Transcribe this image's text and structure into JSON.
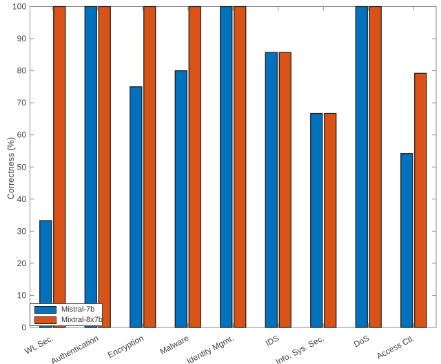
{
  "chart_data": {
    "type": "bar",
    "title": "",
    "xlabel": "",
    "ylabel": "Correctness (%)",
    "categories": [
      "WL Sec.",
      "Authentication",
      "Encryption",
      "Malware",
      "Identity Mgmt.",
      "IDS",
      "Info. Sys. Sec.",
      "DoS",
      "Access Ctl."
    ],
    "series": [
      {
        "name": "Mistral-7b",
        "color": "#0072BD",
        "values": [
          33.3,
          100,
          75,
          80,
          100,
          85.7,
          66.7,
          100,
          54.2
        ]
      },
      {
        "name": "Mixtral-8x7b",
        "color": "#D95319",
        "values": [
          100,
          100,
          100,
          100,
          100,
          85.7,
          66.7,
          100,
          79.2
        ]
      }
    ],
    "ylim": [
      0,
      100
    ],
    "ytick_step": 10,
    "grid": "off",
    "legend_position": "bottom-left",
    "bar_edge_color": "#1f1f1f"
  }
}
